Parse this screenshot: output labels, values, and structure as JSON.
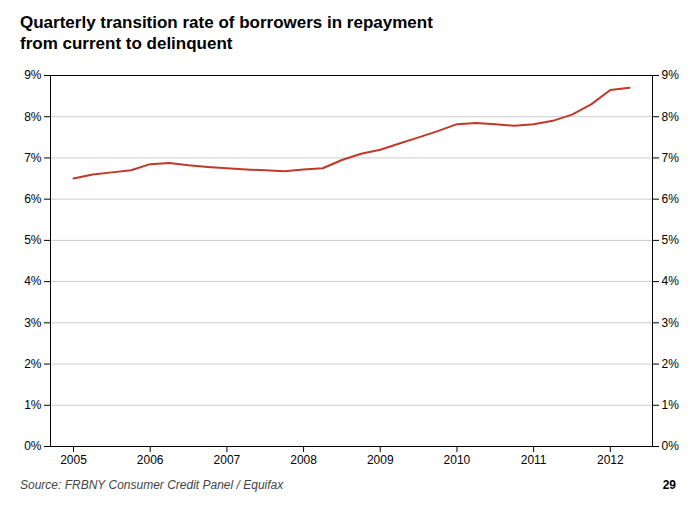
{
  "chart_data": {
    "type": "line",
    "title": "Quarterly transition rate of borrowers in repayment\nfrom current to delinquent",
    "source": "Source: FRBNY Consumer Credit Panel / Equifax",
    "page_number": "29",
    "x": [
      2005.0,
      2005.25,
      2005.5,
      2005.75,
      2006.0,
      2006.25,
      2006.5,
      2006.75,
      2007.0,
      2007.25,
      2007.5,
      2007.75,
      2008.0,
      2008.25,
      2008.5,
      2008.75,
      2009.0,
      2009.25,
      2009.5,
      2009.75,
      2010.0,
      2010.25,
      2010.5,
      2010.75,
      2011.0,
      2011.25,
      2011.5,
      2011.75,
      2012.0,
      2012.25
    ],
    "values": [
      6.5,
      6.6,
      6.65,
      6.7,
      6.85,
      6.88,
      6.82,
      6.78,
      6.75,
      6.72,
      6.7,
      6.68,
      6.72,
      6.75,
      6.95,
      7.1,
      7.2,
      7.35,
      7.5,
      7.65,
      7.82,
      7.85,
      7.82,
      7.78,
      7.82,
      7.9,
      8.05,
      8.3,
      8.65,
      8.7
    ],
    "color": "#C0392B",
    "xlim": [
      2004.7,
      2012.55
    ],
    "xticks": [
      2005,
      2006,
      2007,
      2008,
      2009,
      2010,
      2011,
      2012
    ],
    "ylim": [
      0,
      9
    ],
    "yticks": [
      {
        "value": 0,
        "label": "0%"
      },
      {
        "value": 1,
        "label": "1%"
      },
      {
        "value": 2,
        "label": "2%"
      },
      {
        "value": 3,
        "label": "3%"
      },
      {
        "value": 4,
        "label": "4%"
      },
      {
        "value": 5,
        "label": "5%"
      },
      {
        "value": 6,
        "label": "6%"
      },
      {
        "value": 7,
        "label": "7%"
      },
      {
        "value": 8,
        "label": "8%"
      },
      {
        "value": 9,
        "label": "9%"
      }
    ],
    "y2lim": [
      0,
      9
    ],
    "y2ticks": [
      {
        "value": 0,
        "label": "0%"
      },
      {
        "value": 1,
        "label": "1%"
      },
      {
        "value": 2,
        "label": "2%"
      },
      {
        "value": 3,
        "label": "3%"
      },
      {
        "value": 4,
        "label": "4%"
      },
      {
        "value": 5,
        "label": "5%"
      },
      {
        "value": 6,
        "label": "6%"
      },
      {
        "value": 7,
        "label": "7%"
      },
      {
        "value": 8,
        "label": "8%"
      },
      {
        "value": 9,
        "label": "9%"
      }
    ],
    "grid": true
  }
}
